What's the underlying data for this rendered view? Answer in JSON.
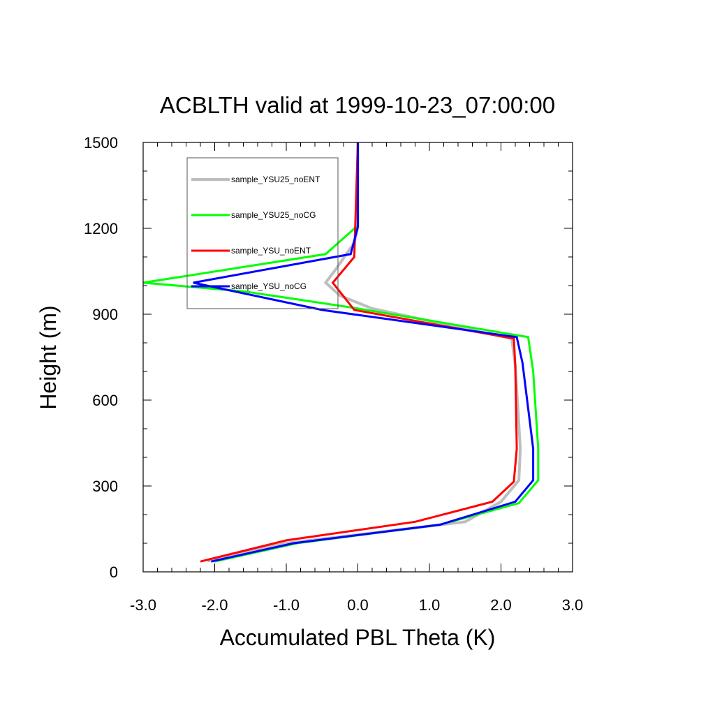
{
  "chart_data": {
    "type": "line",
    "title": "ACBLTH valid at 1999-10-23_07:00:00",
    "xlabel": "Accumulated PBL Theta (K)",
    "ylabel": "Height (m)",
    "xlim": [
      -3.0,
      3.0
    ],
    "ylim": [
      0,
      1500
    ],
    "xticks": [
      -3.0,
      -2.0,
      -1.0,
      0.0,
      1.0,
      2.0,
      3.0
    ],
    "xtick_labels": [
      "-3.0",
      "-2.0",
      "-1.0",
      "0.0",
      "1.0",
      "2.0",
      "3.0"
    ],
    "yticks": [
      0,
      300,
      600,
      900,
      1200,
      1500
    ],
    "ytick_labels": [
      "0",
      "300",
      "600",
      "900",
      "1200",
      "1500"
    ],
    "grid": false,
    "legend_position": "top-left",
    "series": [
      {
        "name": "sample_YSU25_noENT",
        "color": "#bebebe",
        "width": 4,
        "points": [
          [
            -2.1,
            38
          ],
          [
            -1.0,
            100
          ],
          [
            1.5,
            175
          ],
          [
            2.0,
            245
          ],
          [
            2.25,
            320
          ],
          [
            2.27,
            430
          ],
          [
            2.2,
            720
          ],
          [
            2.15,
            815
          ],
          [
            0.2,
            920
          ],
          [
            -0.25,
            965
          ],
          [
            -0.45,
            1010
          ],
          [
            -0.3,
            1060
          ],
          [
            -0.05,
            1150
          ],
          [
            0.0,
            1205
          ],
          [
            0.0,
            1500
          ]
        ]
      },
      {
        "name": "sample_YSU25_noCG",
        "color": "#00ff00",
        "width": 3,
        "points": [
          [
            -2.0,
            36
          ],
          [
            -0.85,
            100
          ],
          [
            1.15,
            165
          ],
          [
            2.25,
            240
          ],
          [
            2.52,
            320
          ],
          [
            2.52,
            430
          ],
          [
            2.45,
            700
          ],
          [
            2.38,
            820
          ],
          [
            0.0,
            920
          ],
          [
            -1.6,
            980
          ],
          [
            -3.0,
            1010
          ],
          [
            -0.45,
            1110
          ],
          [
            0.0,
            1210
          ],
          [
            0.0,
            1500
          ]
        ]
      },
      {
        "name": "sample_YSU_noENT",
        "color": "#ff0000",
        "width": 3,
        "points": [
          [
            -2.2,
            36
          ],
          [
            -1.0,
            110
          ],
          [
            0.8,
            175
          ],
          [
            1.88,
            245
          ],
          [
            2.18,
            315
          ],
          [
            2.22,
            430
          ],
          [
            2.2,
            720
          ],
          [
            2.18,
            815
          ],
          [
            -0.05,
            915
          ],
          [
            -0.35,
            1010
          ],
          [
            -0.05,
            1100
          ],
          [
            0.0,
            1500
          ]
        ]
      },
      {
        "name": "sample_YSU_noCG",
        "color": "#0000ff",
        "width": 3,
        "points": [
          [
            -2.05,
            36
          ],
          [
            -0.9,
            100
          ],
          [
            1.15,
            165
          ],
          [
            2.2,
            245
          ],
          [
            2.45,
            320
          ],
          [
            2.45,
            430
          ],
          [
            2.3,
            730
          ],
          [
            2.22,
            820
          ],
          [
            -0.5,
            915
          ],
          [
            -2.3,
            1010
          ],
          [
            -0.1,
            1110
          ],
          [
            0.0,
            1205
          ],
          [
            0.0,
            1500
          ]
        ]
      }
    ]
  }
}
